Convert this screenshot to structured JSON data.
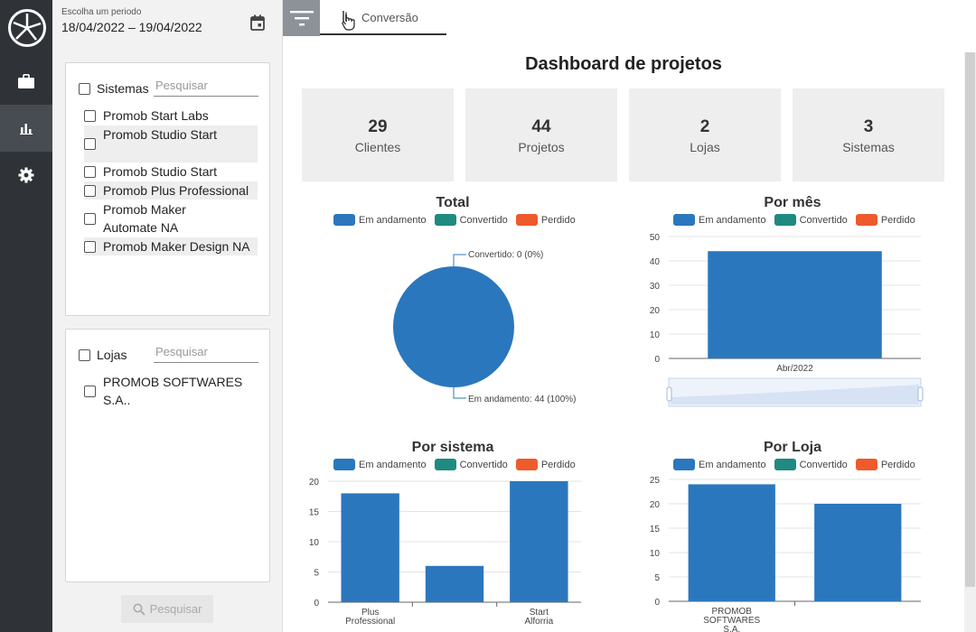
{
  "filters": {
    "period_label": "Escolha um periodo",
    "period_value": "18/04/2022 – 19/04/2022",
    "sistemas": {
      "label": "Sistemas",
      "search_placeholder": "Pesquisar",
      "items": [
        {
          "label": "Promob Start Labs"
        },
        {
          "label": "Promob Studio Start"
        },
        {
          "label": "Promob Studio Start"
        },
        {
          "label": "Promob Plus Professional"
        },
        {
          "label": "Promob Maker Automate NA"
        },
        {
          "label": "Promob Maker Design NA"
        }
      ]
    },
    "lojas": {
      "label": "Lojas",
      "search_placeholder": "Pesquisar",
      "items": [
        {
          "label": "PROMOB SOFTWARES S.A.."
        }
      ]
    },
    "search_button": "Pesquisar"
  },
  "tab": {
    "label": "Conversão"
  },
  "dashboard": {
    "title": "Dashboard de projetos",
    "kpis": [
      {
        "value": "29",
        "label": "Clientes"
      },
      {
        "value": "44",
        "label": "Projetos"
      },
      {
        "value": "2",
        "label": "Lojas"
      },
      {
        "value": "3",
        "label": "Sistemas"
      }
    ],
    "legend": [
      {
        "label": "Em andamento",
        "color": "#2b77be"
      },
      {
        "label": "Convertido",
        "color": "#1f8a80"
      },
      {
        "label": "Perdido",
        "color": "#ee5a2c"
      }
    ]
  },
  "chart_data": [
    {
      "type": "pie",
      "title": "Total",
      "slices": [
        {
          "name": "Em andamento",
          "value": 44,
          "label": "Em andamento: 44 (100%)"
        },
        {
          "name": "Convertido",
          "value": 0,
          "label": "Convertido: 0 (0%)"
        },
        {
          "name": "Perdido",
          "value": 0
        }
      ]
    },
    {
      "type": "bar",
      "title": "Por mês",
      "categories": [
        "Abr/2022"
      ],
      "series": [
        {
          "name": "Em andamento",
          "values": [
            44
          ]
        }
      ],
      "ylim": [
        0,
        50
      ],
      "yticks": [
        0,
        10,
        20,
        30,
        40,
        50
      ]
    },
    {
      "type": "bar",
      "title": "Por sistema",
      "categories": [
        "Plus Professional",
        "",
        "Start Alforria"
      ],
      "series": [
        {
          "name": "Em andamento",
          "values": [
            18,
            6,
            20
          ]
        }
      ],
      "ylim": [
        0,
        20
      ],
      "yticks": [
        0,
        5,
        10,
        15,
        20
      ]
    },
    {
      "type": "bar",
      "title": "Por Loja",
      "categories": [
        "PROMOB SOFTWARES S.A.",
        ""
      ],
      "series": [
        {
          "name": "Em andamento",
          "values": [
            24,
            20
          ]
        }
      ],
      "ylim": [
        0,
        25
      ],
      "yticks": [
        0,
        5,
        10,
        15,
        20,
        25
      ]
    }
  ]
}
